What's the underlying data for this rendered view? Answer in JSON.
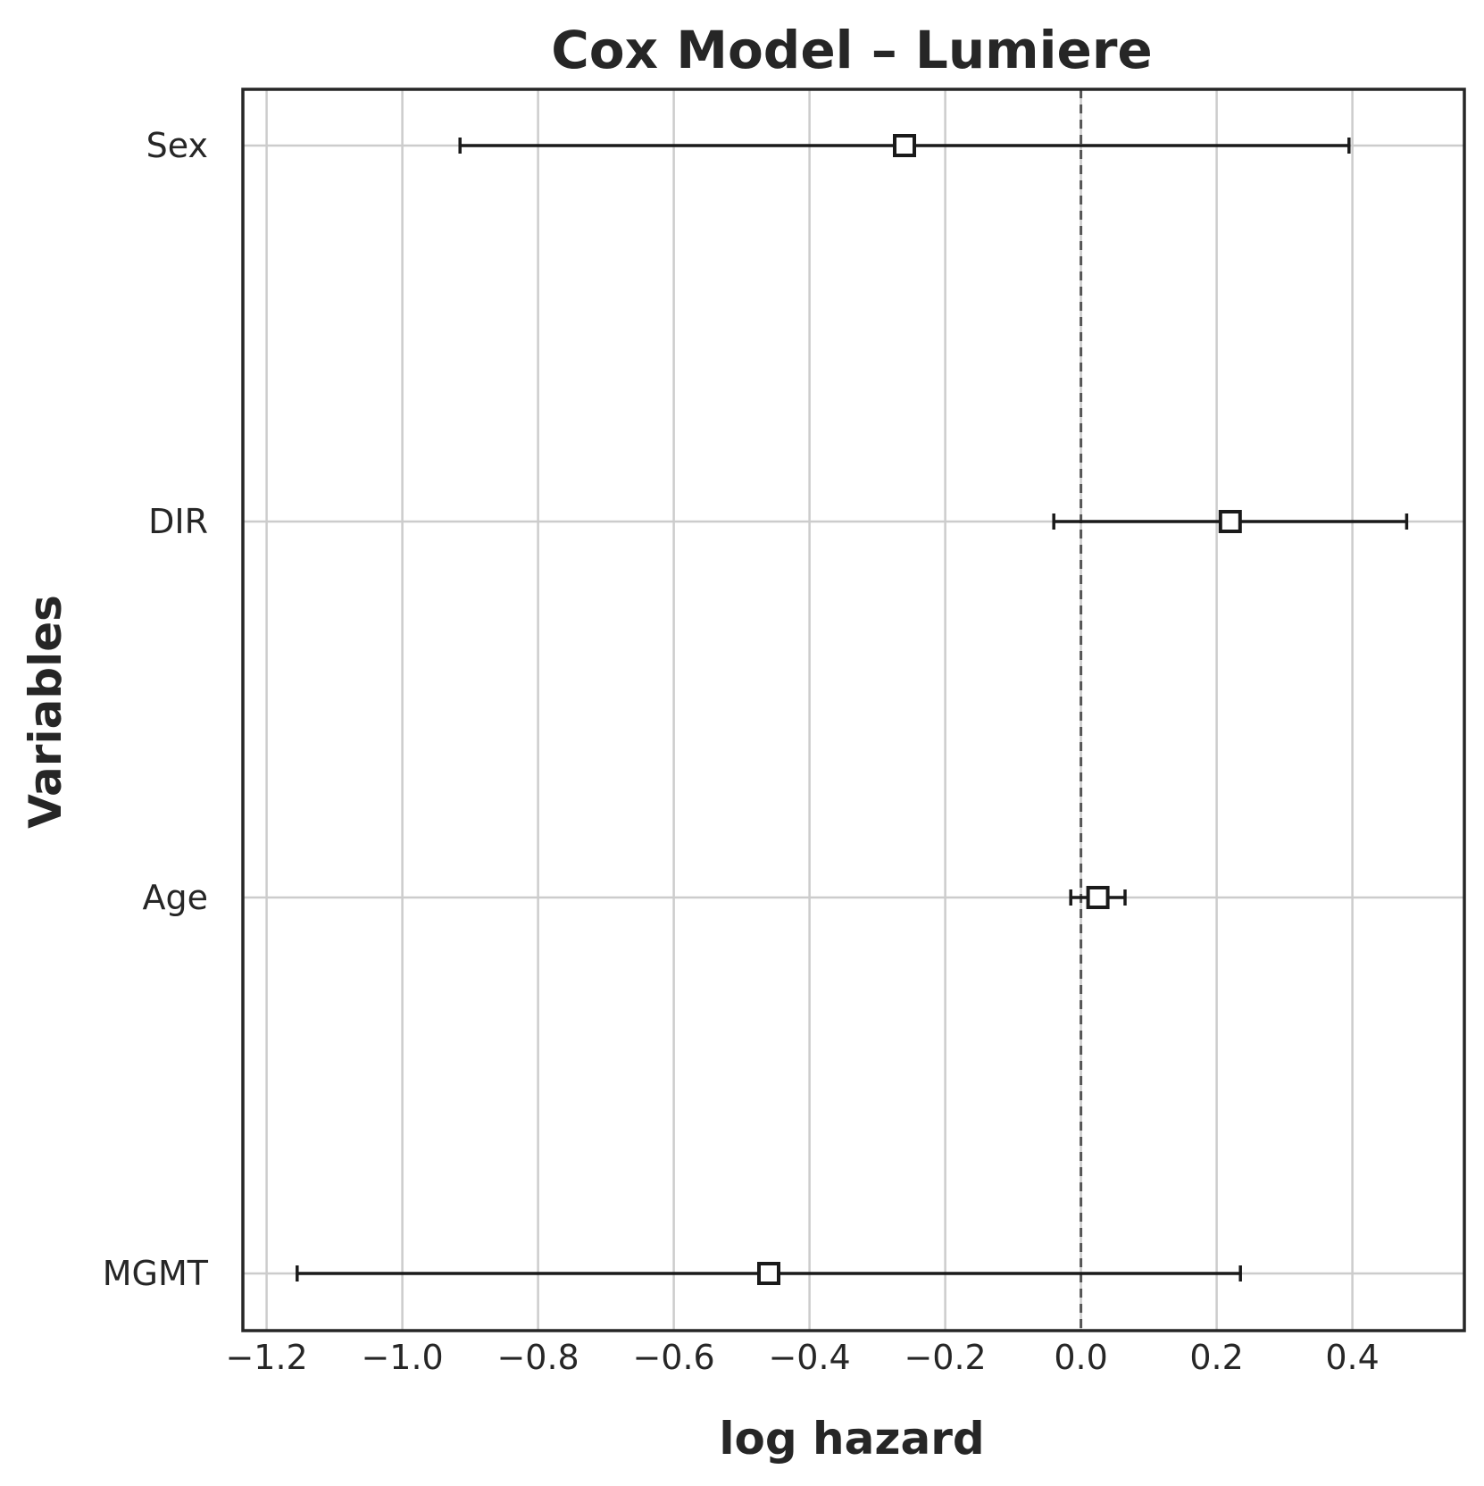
{
  "chart_data": {
    "type": "forest",
    "title": "Cox Model – Lumiere",
    "xlabel": "log hazard",
    "ylabel": "Variables",
    "xlim": [
      -1.235,
      0.565
    ],
    "x_ticks": [
      -1.2,
      -1.0,
      -0.8,
      -0.6,
      -0.4,
      -0.2,
      0.0,
      0.2,
      0.4
    ],
    "x_tick_labels": [
      "−1.2",
      "−1.0",
      "−0.8",
      "−0.6",
      "−0.4",
      "−0.2",
      "0.0",
      "0.2",
      "0.4"
    ],
    "reference_line": 0.0,
    "grid": true,
    "rows": [
      {
        "label": "Sex",
        "coef": -0.26,
        "lower": -0.915,
        "upper": 0.395
      },
      {
        "label": "DIR",
        "coef": 0.22,
        "lower": -0.04,
        "upper": 0.48
      },
      {
        "label": "Age",
        "coef": 0.025,
        "lower": -0.015,
        "upper": 0.065
      },
      {
        "label": "MGMT",
        "coef": -0.46,
        "lower": -1.155,
        "upper": 0.235
      }
    ]
  }
}
